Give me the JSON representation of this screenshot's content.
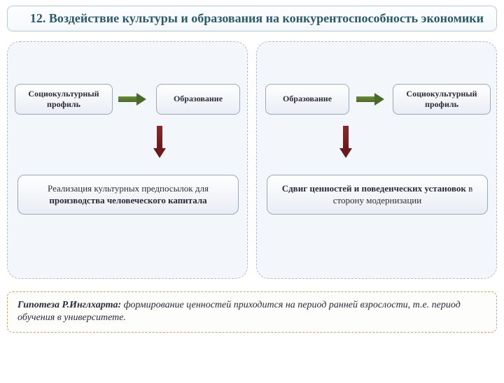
{
  "title": "12. Воздействие  культуры и образования на конкурентоспособность экономики",
  "colors": {
    "arrow_left_h_body": "#6a8a3a",
    "arrow_left_h_head": "#4a6a2a",
    "arrow_left_v_body": "#8a2a2a",
    "arrow_left_v_head": "#6a1a1a",
    "arrow_right_h_body": "#6a8a3a",
    "arrow_right_h_head": "#4a6a2a",
    "arrow_right_v_body": "#8a2a2a",
    "arrow_right_v_head": "#6a1a1a"
  },
  "left": {
    "top_left": "Социокультурный профиль",
    "top_right": "Образование",
    "bottom_prefix": "Реализация культурных предпосылок для ",
    "bottom_bold": "производства человеческого капитала"
  },
  "right": {
    "top_left": "Образование",
    "top_right": "Социокультурный профиль",
    "bottom_bold": "Сдвиг ценностей и поведенческих установок",
    "bottom_suffix": " в сторону модернизации"
  },
  "footer": {
    "lead": "Гипотеза Р.Инглхарта:",
    "text": " формирование ценностей приходится на период ранней взрослости, т.е. период обучения в университете."
  }
}
